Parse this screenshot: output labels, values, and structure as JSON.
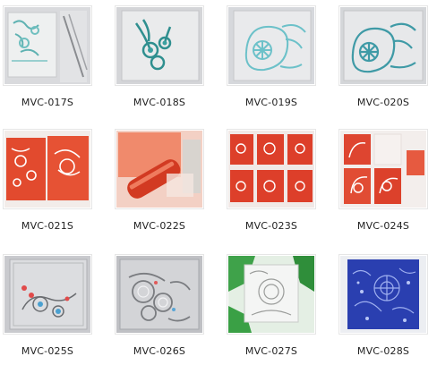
{
  "gallery": {
    "items": [
      {
        "label": "MVC-017S",
        "icon": "white-tile-blue-floral-corner-thumbnail"
      },
      {
        "label": "MVC-018S",
        "icon": "white-tile-teal-flowers-thumbnail"
      },
      {
        "label": "MVC-019S",
        "icon": "white-tile-blue-paisley-thumbnail"
      },
      {
        "label": "MVC-020S",
        "icon": "white-tile-blue-paisley-dark-thumbnail"
      },
      {
        "label": "MVC-021S",
        "icon": "red-prints-white-flowers-thumbnail"
      },
      {
        "label": "MVC-022S",
        "icon": "red-roller-brayer-thumbnail"
      },
      {
        "label": "MVC-023S",
        "icon": "red-print-grid-thumbnail"
      },
      {
        "label": "MVC-024S",
        "icon": "red-prints-paisley-thumbnail"
      },
      {
        "label": "MVC-025S",
        "icon": "grey-tile-red-blue-flowers-thumbnail"
      },
      {
        "label": "MVC-026S",
        "icon": "grey-tile-silver-swirls-thumbnail"
      },
      {
        "label": "MVC-027S",
        "icon": "green-white-print-thumbnail"
      },
      {
        "label": "MVC-028S",
        "icon": "blue-patterned-print-thumbnail"
      }
    ]
  }
}
